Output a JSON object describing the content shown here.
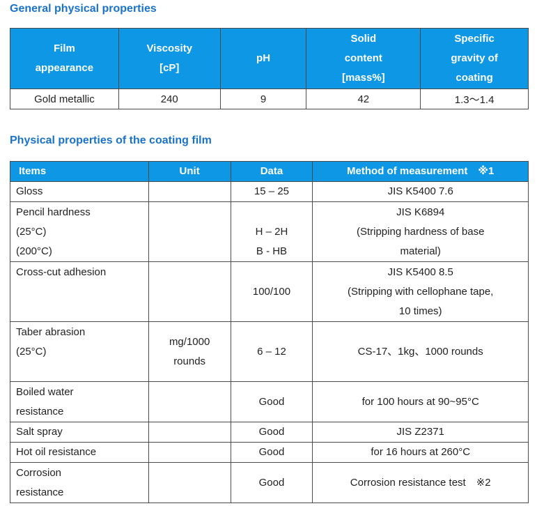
{
  "section1": {
    "title": "General physical properties",
    "headers": [
      [
        "Film",
        "appearance"
      ],
      [
        "Viscosity",
        "[cP]"
      ],
      [
        "pH"
      ],
      [
        "Solid",
        "content",
        "[mass%]"
      ],
      [
        "Specific",
        "gravity of",
        "coating"
      ]
    ],
    "row": [
      "Gold metallic",
      "240",
      "9",
      "42",
      "1.3～1.4"
    ]
  },
  "section2": {
    "title": "Physical properties of the coating film",
    "headers": [
      "Items",
      "Unit",
      "Data",
      "Method of measurement　※1"
    ],
    "rows": [
      {
        "item": [
          "Gloss"
        ],
        "unit": [],
        "data": [
          "15 – 25"
        ],
        "method": [
          "JIS K5400 7.6"
        ]
      },
      {
        "item": [
          "Pencil hardness",
          " (25°C)",
          " (200°C)"
        ],
        "unit": [],
        "data": [
          "",
          "H – 2H",
          "B - HB"
        ],
        "method": [
          "JIS K6894",
          "(Stripping hardness of base",
          "material)"
        ]
      },
      {
        "item": [
          "Cross-cut adhesion",
          "",
          ""
        ],
        "unit": [],
        "data": [
          "",
          "100/100",
          ""
        ],
        "method": [
          "JIS K5400 8.5",
          "(Stripping with cellophane tape,",
          "10 times)"
        ]
      },
      {
        "item": [
          " Taber abrasion",
          " (25°C)",
          ""
        ],
        "unit": [
          "mg/1000",
          "rounds"
        ],
        "data": [
          "6 – 12"
        ],
        "method": [
          "CS-17、1kg、1000 rounds"
        ]
      },
      {
        "item": [
          "Boiled water",
          "resistance"
        ],
        "unit": [],
        "data": [
          "Good"
        ],
        "method": [
          "for 100 hours at 90~95°C"
        ]
      },
      {
        "item": [
          "Salt spray"
        ],
        "unit": [],
        "data": [
          "Good"
        ],
        "method": [
          "JIS Z2371"
        ]
      },
      {
        "item": [
          "Hot oil resistance"
        ],
        "unit": [],
        "data": [
          "Good"
        ],
        "method": [
          "for 16 hours at 260°C"
        ]
      },
      {
        "item": [
          "Corrosion",
          "resistance"
        ],
        "unit": [],
        "data": [
          "Good"
        ],
        "method": [
          "Corrosion resistance test　※2"
        ]
      }
    ]
  }
}
